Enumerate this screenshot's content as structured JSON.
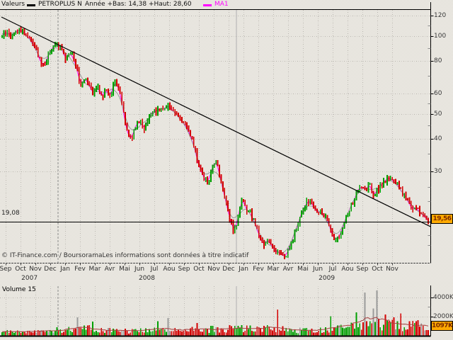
{
  "header": {
    "valeurs_label": "Valeurs",
    "symbol": "PETROPLUS N",
    "range_info": "Année +Bas: 14,38 +Haut: 28,60",
    "ma_label": "MA1"
  },
  "footer": {
    "copyright": "© IT-Finance.com / BoursoramaLes informations sont données à titre indicatif"
  },
  "price_axis": {
    "hline_label": "19,08",
    "last_price_label": "19,56"
  },
  "volume_pane": {
    "label": "Volume 15",
    "y_tick_labels": [
      "4000K",
      "2000K"
    ],
    "last_volume_label": "1097K"
  },
  "colors": {
    "up": "#00a000",
    "down": "#d40000",
    "ma1": "#ff00ff",
    "ma_smooth": "#9a9a9a",
    "volume_ma": "#a84040",
    "trend": "#000000",
    "grid": "#c3c0ba",
    "year_line_dashed": "#8a8a8a",
    "year_line_solid": "#b0b0b0",
    "axis": "#000000",
    "gray_bar": "#9a9a9a",
    "highlight_bg": "#ffaa00",
    "highlight_text": "#7a2800"
  },
  "chart_data": {
    "type": "candlestick",
    "title": "PETROPLUS N",
    "period": "Sep 2007 - Nov 2009, daily",
    "scale": "log",
    "year_low": 14.38,
    "year_high": 28.6,
    "last_price": 19.56,
    "hline_level": 19.08,
    "last_volume_k": 1097,
    "price_axis_ticks": [
      120,
      100,
      80,
      60,
      50,
      40,
      30
    ],
    "price_axis_minor_ticks": [
      110,
      90,
      70,
      55,
      45,
      35,
      26,
      23,
      17,
      15.5
    ],
    "volume_axis_ticks_k": [
      4000,
      2000
    ],
    "volume_axis_minor_ticks_k": [
      3000
    ],
    "x_months": [
      "Sep",
      "Oct",
      "Nov",
      "Dec",
      "Jan",
      "Fev",
      "Mar",
      "Avr",
      "Mai",
      "Jun",
      "Jul",
      "Aou",
      "Sep",
      "Oct",
      "Nov",
      "Dec",
      "Jan",
      "Fev",
      "Mar",
      "Avr",
      "Mai",
      "Jun",
      "Jul",
      "Aou",
      "Sep",
      "Oct",
      "Nov"
    ],
    "years": [
      {
        "label": "2007",
        "month_index": 1.6
      },
      {
        "label": "2008",
        "month_index": 9.5
      },
      {
        "label": "2009",
        "month_index": 21.6
      }
    ],
    "trendline": {
      "start_price": 118.5,
      "end_price": 18.3
    },
    "price_anchors": [
      [
        4,
        101
      ],
      [
        10,
        103
      ],
      [
        16,
        100
      ],
      [
        22,
        104
      ],
      [
        28,
        107
      ],
      [
        34,
        103
      ],
      [
        40,
        100
      ],
      [
        46,
        95
      ],
      [
        52,
        87
      ],
      [
        58,
        79
      ],
      [
        62,
        76
      ],
      [
        68,
        84
      ],
      [
        74,
        89
      ],
      [
        80,
        94
      ],
      [
        86,
        90
      ],
      [
        92,
        81
      ],
      [
        98,
        87
      ],
      [
        104,
        83
      ],
      [
        110,
        72
      ],
      [
        114,
        65
      ],
      [
        120,
        70
      ],
      [
        126,
        66
      ],
      [
        132,
        60
      ],
      [
        138,
        64
      ],
      [
        144,
        58
      ],
      [
        150,
        62
      ],
      [
        156,
        59
      ],
      [
        162,
        66
      ],
      [
        168,
        63
      ],
      [
        174,
        52
      ],
      [
        180,
        42
      ],
      [
        186,
        40
      ],
      [
        192,
        46
      ],
      [
        198,
        47
      ],
      [
        204,
        44
      ],
      [
        210,
        48
      ],
      [
        216,
        50
      ],
      [
        222,
        52
      ],
      [
        228,
        52
      ],
      [
        234,
        54
      ],
      [
        240,
        53
      ],
      [
        246,
        51
      ],
      [
        252,
        49
      ],
      [
        258,
        47
      ],
      [
        264,
        44
      ],
      [
        270,
        40
      ],
      [
        276,
        36
      ],
      [
        282,
        31
      ],
      [
        288,
        28
      ],
      [
        294,
        27
      ],
      [
        300,
        31
      ],
      [
        306,
        33
      ],
      [
        312,
        28
      ],
      [
        318,
        23
      ],
      [
        324,
        20
      ],
      [
        330,
        17.8
      ],
      [
        336,
        19
      ],
      [
        342,
        23.5
      ],
      [
        348,
        21
      ],
      [
        354,
        20.5
      ],
      [
        360,
        19
      ],
      [
        366,
        17
      ],
      [
        372,
        15.2
      ],
      [
        378,
        16.5
      ],
      [
        384,
        15.5
      ],
      [
        390,
        14.8
      ],
      [
        396,
        14.4
      ],
      [
        402,
        14.1
      ],
      [
        408,
        14.8
      ],
      [
        414,
        16.5
      ],
      [
        420,
        18.5
      ],
      [
        426,
        20.5
      ],
      [
        432,
        22.5
      ],
      [
        438,
        23.2
      ],
      [
        444,
        21.5
      ],
      [
        450,
        20.5
      ],
      [
        456,
        21
      ],
      [
        462,
        19.5
      ],
      [
        468,
        17.5
      ],
      [
        474,
        16.2
      ],
      [
        480,
        17
      ],
      [
        486,
        19
      ],
      [
        492,
        21
      ],
      [
        498,
        22.5
      ],
      [
        504,
        24.5
      ],
      [
        510,
        26
      ],
      [
        516,
        25
      ],
      [
        522,
        26.5
      ],
      [
        528,
        24.5
      ],
      [
        534,
        25.5
      ],
      [
        540,
        27
      ],
      [
        546,
        27.8
      ],
      [
        552,
        28.4
      ],
      [
        558,
        27.5
      ],
      [
        564,
        25.5
      ],
      [
        570,
        24.5
      ],
      [
        576,
        23
      ],
      [
        582,
        22
      ],
      [
        588,
        21.3
      ],
      [
        594,
        20.6
      ],
      [
        600,
        20
      ],
      [
        605,
        19.56
      ]
    ],
    "volume_anchors_k": [
      [
        4,
        350
      ],
      [
        60,
        400
      ],
      [
        90,
        650
      ],
      [
        110,
        800
      ],
      [
        135,
        600
      ],
      [
        170,
        450
      ],
      [
        210,
        520
      ],
      [
        245,
        560
      ],
      [
        285,
        620
      ],
      [
        320,
        700
      ],
      [
        350,
        780
      ],
      [
        385,
        700
      ],
      [
        420,
        520
      ],
      [
        455,
        560
      ],
      [
        490,
        850
      ],
      [
        510,
        1150
      ],
      [
        535,
        1250
      ],
      [
        560,
        950
      ],
      [
        585,
        1050
      ],
      [
        605,
        900
      ]
    ],
    "volume_spikes_k": [
      [
        110,
        1900,
        "r"
      ],
      [
        131,
        1450,
        "g"
      ],
      [
        222,
        1500,
        "g"
      ],
      [
        237,
        1800,
        "x"
      ],
      [
        278,
        1300,
        "r"
      ],
      [
        392,
        2700,
        "r"
      ],
      [
        467,
        2000,
        "g"
      ],
      [
        504,
        2400,
        "g"
      ],
      [
        516,
        4500,
        "g"
      ],
      [
        527,
        2800,
        "x"
      ],
      [
        533,
        4700,
        "x"
      ],
      [
        545,
        2200,
        "r"
      ],
      [
        556,
        1900,
        "r"
      ],
      [
        566,
        2300,
        "r"
      ],
      [
        578,
        1500,
        "r"
      ],
      [
        590,
        1600,
        "r"
      ]
    ]
  }
}
